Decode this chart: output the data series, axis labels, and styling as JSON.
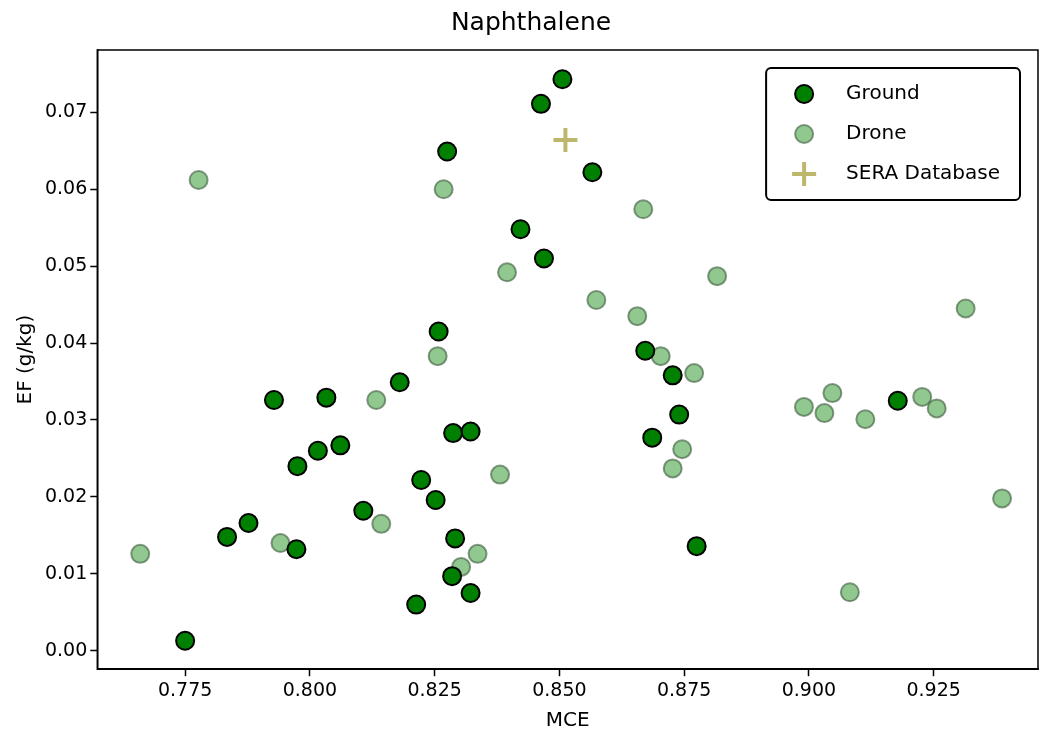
{
  "chart_data": {
    "type": "scatter",
    "title": "Naphthalene",
    "xlabel": "MCE",
    "ylabel": "EF (g/kg)",
    "xlim": [
      0.7574,
      0.9459
    ],
    "ylim": [
      -0.0024,
      0.0781
    ],
    "xticks": [
      {
        "value": 0.775,
        "label": "0.775"
      },
      {
        "value": 0.8,
        "label": "0.800"
      },
      {
        "value": 0.825,
        "label": "0.825"
      },
      {
        "value": 0.85,
        "label": "0.850"
      },
      {
        "value": 0.875,
        "label": "0.875"
      },
      {
        "value": 0.9,
        "label": "0.900"
      },
      {
        "value": 0.925,
        "label": "0.925"
      }
    ],
    "yticks": [
      {
        "value": 0,
        "label": "0.00"
      },
      {
        "value": 0.01,
        "label": "0.01"
      },
      {
        "value": 0.02,
        "label": "0.02"
      },
      {
        "value": 0.03,
        "label": "0.03"
      },
      {
        "value": 0.04,
        "label": "0.04"
      },
      {
        "value": 0.05,
        "label": "0.05"
      },
      {
        "value": 0.06,
        "label": "0.06"
      },
      {
        "value": 0.07,
        "label": "0.07"
      }
    ],
    "grid": false,
    "legend": "top right",
    "series": [
      {
        "name": "Ground",
        "color": "#008000",
        "marker": "circle",
        "x": [
          0.775,
          0.7834,
          0.7877,
          0.7928,
          0.7973,
          0.7975,
          0.8016,
          0.8033,
          0.8061,
          0.8107,
          0.818,
          0.8213,
          0.8223,
          0.8252,
          0.8258,
          0.8275,
          0.8285,
          0.8287,
          0.8291,
          0.8322,
          0.8322,
          0.8422,
          0.8463,
          0.8469,
          0.8506,
          0.8566,
          0.8672,
          0.8686,
          0.8727,
          0.874,
          0.8775,
          0.9178
        ],
        "values": [
          0.0013,
          0.0148,
          0.0166,
          0.0326,
          0.0132,
          0.024,
          0.026,
          0.0329,
          0.0267,
          0.0182,
          0.0349,
          0.006,
          0.0222,
          0.0196,
          0.0415,
          0.0649,
          0.0097,
          0.0283,
          0.0146,
          0.0285,
          0.0075,
          0.0548,
          0.0711,
          0.051,
          0.0743,
          0.0622,
          0.039,
          0.0277,
          0.0358,
          0.0307,
          0.0136,
          0.0325
        ]
      },
      {
        "name": "Drone",
        "color": "#90c890",
        "marker": "circle",
        "x": [
          0.766,
          0.7777,
          0.7941,
          0.8133,
          0.8143,
          0.8256,
          0.8268,
          0.8303,
          0.8336,
          0.8381,
          0.8395,
          0.8574,
          0.8656,
          0.8668,
          0.8703,
          0.8727,
          0.8746,
          0.877,
          0.8816,
          0.899,
          0.9031,
          0.9047,
          0.9082,
          0.9113,
          0.9227,
          0.9256,
          0.9314,
          0.9387
        ],
        "values": [
          0.0126,
          0.0612,
          0.014,
          0.0326,
          0.0165,
          0.0383,
          0.06,
          0.0109,
          0.0126,
          0.0229,
          0.0492,
          0.0456,
          0.0435,
          0.0574,
          0.0383,
          0.0237,
          0.0262,
          0.0361,
          0.0487,
          0.0317,
          0.0309,
          0.0335,
          0.0076,
          0.0301,
          0.033,
          0.0315,
          0.0445,
          0.0198
        ]
      },
      {
        "name": "SERA Database",
        "color": "#bdb76b",
        "marker": "cross",
        "x": [
          0.8512
        ],
        "values": [
          0.0664
        ]
      }
    ]
  }
}
